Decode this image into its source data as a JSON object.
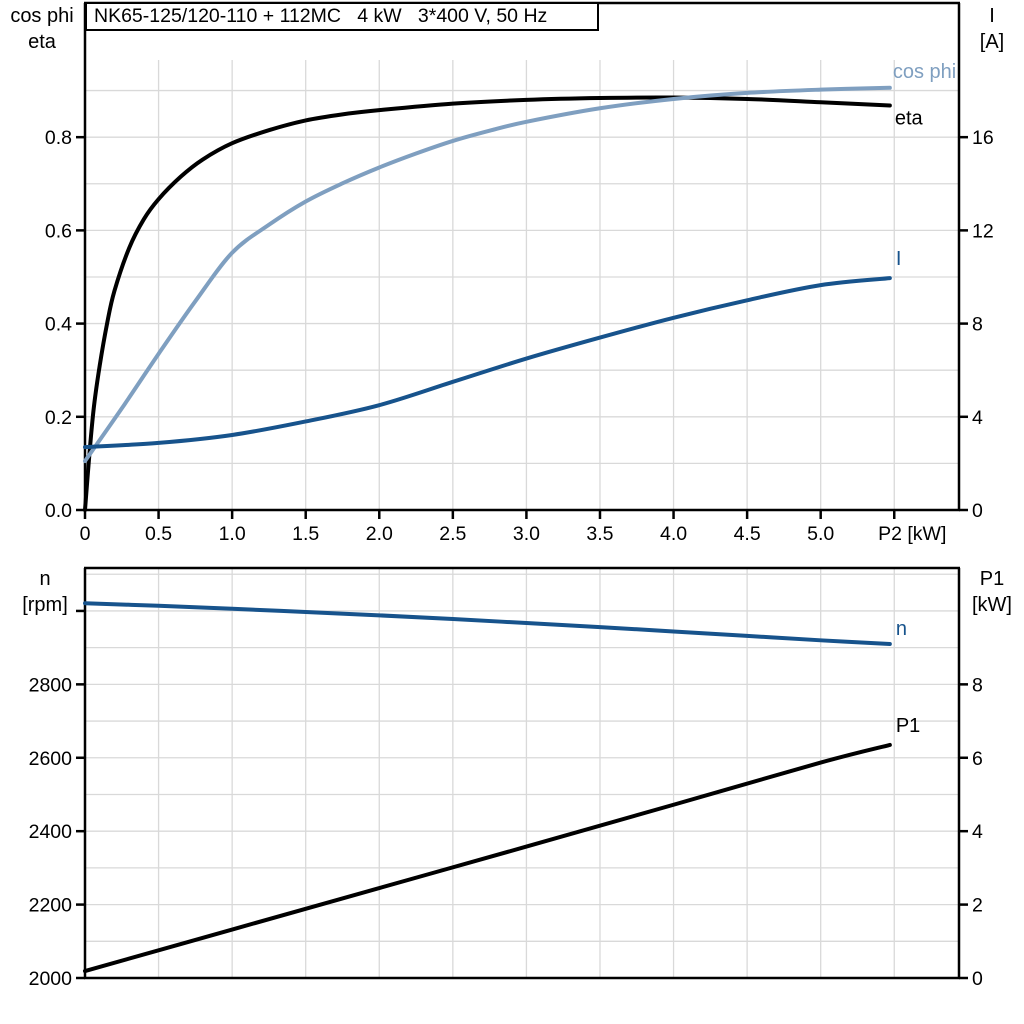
{
  "title_box": {
    "text": "NK65-125/120-110 + 112MC   4 kW   3*400 V, 50 Hz"
  },
  "axis_corner_labels": {
    "top_left": [
      "cos phi",
      "eta"
    ],
    "top_right": [
      "I",
      "[A]"
    ],
    "bottom_left": [
      "n",
      "[rpm]"
    ],
    "bottom_right": [
      "P1",
      "[kW]"
    ]
  },
  "colors": {
    "black": "#000000",
    "light_blue": "#7f9fc0",
    "dark_blue": "#17538c",
    "grid": "#d9d9d9",
    "axis": "#000000",
    "background": "#ffffff"
  },
  "chart_data": [
    {
      "type": "line",
      "title": "Motor efficiency, power factor and current vs shaft power",
      "x_axis": {
        "label": "P2 [kW]",
        "lim": [
          0,
          5.94
        ],
        "tick_step": 0.5,
        "grid_step": 0.5,
        "tick_labels": [
          "0",
          "0.5",
          "1.0",
          "1.5",
          "2.0",
          "2.5",
          "3.0",
          "3.5",
          "4.0",
          "4.5",
          "5.0",
          "P2 [kW]"
        ]
      },
      "left_axis": {
        "names": [
          "cos phi",
          "eta"
        ],
        "lim": [
          0,
          0.9656
        ],
        "grid_step": 0.1,
        "ticks": [
          0,
          0.2,
          0.4,
          0.6,
          0.8
        ],
        "tick_labels": [
          "0.0",
          "0.2",
          "0.4",
          "0.6",
          "0.8"
        ]
      },
      "right_axis": {
        "names": [
          "I"
        ],
        "unit": "[A]",
        "lim": [
          0,
          19.312
        ],
        "grid_step": 2,
        "ticks": [
          0,
          4,
          8,
          12,
          16
        ],
        "tick_labels": [
          "0",
          "4",
          "8",
          "12",
          "16"
        ]
      },
      "series": [
        {
          "name": "eta",
          "axis": "left",
          "color_key": "black",
          "label_offset": [
            5,
            19
          ],
          "x": [
            0,
            0.03,
            0.06,
            0.1,
            0.15,
            0.2,
            0.3,
            0.4,
            0.5,
            0.65,
            0.8,
            1.0,
            1.25,
            1.5,
            1.75,
            2.0,
            2.5,
            3.0,
            3.5,
            4.0,
            4.5,
            5.0,
            5.47
          ],
          "y": [
            0,
            0.12,
            0.22,
            0.31,
            0.4,
            0.47,
            0.562,
            0.624,
            0.667,
            0.715,
            0.752,
            0.787,
            0.815,
            0.836,
            0.849,
            0.858,
            0.872,
            0.88,
            0.884,
            0.885,
            0.882,
            0.875,
            0.868
          ]
        },
        {
          "name": "cos phi",
          "axis": "left",
          "color_key": "light_blue",
          "label_offset": [
            3,
            -10
          ],
          "x": [
            0,
            0.25,
            0.5,
            0.75,
            1.0,
            1.25,
            1.5,
            1.75,
            2.0,
            2.25,
            2.5,
            2.75,
            3.0,
            3.5,
            4.0,
            4.5,
            5.0,
            5.47
          ],
          "y": [
            0.105,
            0.218,
            0.335,
            0.448,
            0.552,
            0.612,
            0.662,
            0.701,
            0.735,
            0.765,
            0.792,
            0.814,
            0.833,
            0.862,
            0.882,
            0.895,
            0.902,
            0.906
          ]
        },
        {
          "name": "I",
          "axis": "right",
          "color_key": "dark_blue",
          "label_offset": [
            6,
            -13
          ],
          "x": [
            0,
            0.5,
            1.0,
            1.5,
            2.0,
            2.5,
            3.0,
            3.5,
            4.0,
            4.5,
            5.0,
            5.47
          ],
          "y": [
            2.7,
            2.88,
            3.22,
            3.8,
            4.5,
            5.5,
            6.5,
            7.4,
            8.25,
            9.0,
            9.65,
            9.95
          ]
        }
      ]
    },
    {
      "type": "line",
      "title": "Motor speed and input power vs shaft power",
      "x_axis": {
        "label": "",
        "lim": [
          0,
          5.94
        ],
        "tick_step": 0.5,
        "grid_step": 0.5,
        "tick_labels": []
      },
      "left_axis": {
        "names": [
          "n"
        ],
        "unit": "[rpm]",
        "lim": [
          2000,
          3117
        ],
        "grid_step": 100,
        "ticks": [
          2000,
          2200,
          2400,
          2600,
          2800,
          3000
        ],
        "tick_labels": [
          "2000",
          "2200",
          "2400",
          "2600",
          "2800",
          ""
        ]
      },
      "right_axis": {
        "names": [
          "P1"
        ],
        "unit": "[kW]",
        "lim": [
          0,
          11.17
        ],
        "grid_step": 1,
        "ticks": [
          0,
          2,
          4,
          6,
          8
        ],
        "tick_labels": [
          "0",
          "2",
          "4",
          "6",
          "8"
        ]
      },
      "series": [
        {
          "name": "n",
          "axis": "left",
          "color_key": "dark_blue",
          "label_offset": [
            6,
            -9
          ],
          "x": [
            0,
            0.5,
            1.0,
            1.5,
            2.0,
            2.5,
            3.0,
            3.5,
            4.0,
            4.5,
            5.0,
            5.47
          ],
          "y": [
            3021,
            3014,
            3006,
            2997,
            2988,
            2978,
            2967,
            2956,
            2944,
            2932,
            2920,
            2910
          ]
        },
        {
          "name": "P1",
          "axis": "right",
          "color_key": "black",
          "label_offset": [
            6,
            -13
          ],
          "x": [
            0,
            1.0,
            2.0,
            3.0,
            4.0,
            5.0,
            5.47
          ],
          "y": [
            0.19,
            1.32,
            2.45,
            3.58,
            4.72,
            5.87,
            6.35
          ]
        }
      ]
    }
  ]
}
